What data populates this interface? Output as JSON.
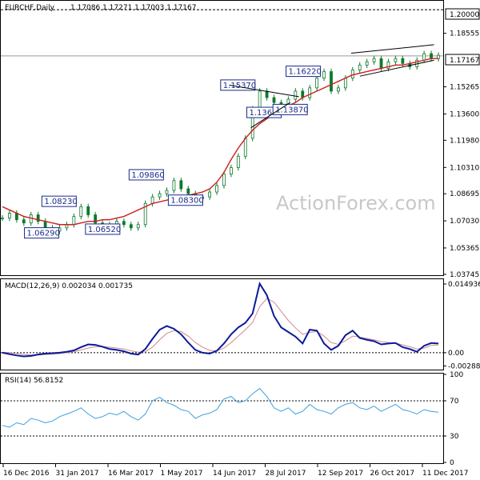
{
  "chart_data": {
    "type": "candlestick",
    "symbol_header": "EURCHF,Daily",
    "ohlc": "1.17086 1.17271 1.17003 1.17167",
    "watermark": "ActionForex.com",
    "x_labels": [
      "16 Dec 2016",
      "31 Jan 2017",
      "16 Mar 2017",
      "1 May 2017",
      "14 Jun 2017",
      "28 Jul 2017",
      "12 Sep 2017",
      "26 Oct 2017",
      "11 Dec 2017"
    ],
    "price_panel": {
      "ylim": [
        1.0374,
        1.205
      ],
      "y_ticks": [
        "1.18555",
        "1.15265",
        "1.13600",
        "1.11980",
        "1.10310",
        "1.08695",
        "1.07030",
        "1.05365",
        "1.03745"
      ],
      "levels": {
        "upper": "1.20000",
        "current": "1.17167"
      },
      "annotations": [
        {
          "label": "1.06290",
          "x": 0.09,
          "y": 1.0629
        },
        {
          "label": "1.08230",
          "x": 0.13,
          "y": 1.0823
        },
        {
          "label": "1.06520",
          "x": 0.23,
          "y": 1.0652
        },
        {
          "label": "1.09860",
          "x": 0.33,
          "y": 1.0986
        },
        {
          "label": "1.08300",
          "x": 0.42,
          "y": 1.083
        },
        {
          "label": "1.15370",
          "x": 0.54,
          "y": 1.1537
        },
        {
          "label": "1.13690",
          "x": 0.6,
          "y": 1.1369
        },
        {
          "label": "1.13870",
          "x": 0.66,
          "y": 1.1387
        },
        {
          "label": "1.16220",
          "x": 0.69,
          "y": 1.1622
        }
      ],
      "close": [
        1.072,
        1.075,
        1.071,
        1.069,
        1.074,
        1.07,
        1.066,
        1.064,
        1.066,
        1.068,
        1.073,
        1.079,
        1.074,
        1.069,
        1.067,
        1.068,
        1.07,
        1.068,
        1.066,
        1.068,
        1.081,
        1.085,
        1.087,
        1.089,
        1.095,
        1.09,
        1.087,
        1.084,
        1.085,
        1.088,
        1.092,
        1.099,
        1.103,
        1.11,
        1.121,
        1.139,
        1.15,
        1.146,
        1.143,
        1.14,
        1.145,
        1.15,
        1.146,
        1.152,
        1.158,
        1.162,
        1.15,
        1.152,
        1.158,
        1.163,
        1.166,
        1.168,
        1.17,
        1.164,
        1.168,
        1.17,
        1.167,
        1.165,
        1.169,
        1.173,
        1.17,
        1.172
      ],
      "ma": [
        1.079,
        1.077,
        1.075,
        1.073,
        1.072,
        1.071,
        1.07,
        1.069,
        1.068,
        1.068,
        1.068,
        1.069,
        1.07,
        1.07,
        1.071,
        1.071,
        1.072,
        1.073,
        1.075,
        1.077,
        1.079,
        1.081,
        1.082,
        1.083,
        1.084,
        1.085,
        1.086,
        1.087,
        1.088,
        1.09,
        1.094,
        1.1,
        1.108,
        1.115,
        1.121,
        1.126,
        1.13,
        1.133,
        1.136,
        1.139,
        1.141,
        1.143,
        1.146,
        1.148,
        1.15,
        1.152,
        1.154,
        1.156,
        1.158,
        1.16,
        1.161,
        1.162,
        1.163,
        1.164,
        1.165,
        1.166,
        1.166,
        1.167,
        1.168,
        1.169,
        1.17,
        1.17
      ],
      "trendlines": [
        {
          "from": [
            0.52,
            1.1537
          ],
          "to": [
            0.68,
            1.1466
          ]
        },
        {
          "from": [
            0.57,
            1.1275
          ],
          "to": [
            0.66,
            1.143
          ]
        },
        {
          "from": [
            0.8,
            1.1733
          ],
          "to": [
            0.99,
            1.1785
          ]
        },
        {
          "from": [
            0.82,
            1.1592
          ],
          "to": [
            0.99,
            1.169
          ]
        }
      ]
    },
    "macd_panel": {
      "label": "MACD(12,26,9) 0.002034 0.001735",
      "ylim": [
        -0.0035,
        0.0158
      ],
      "y_ticks": [
        "0.014936",
        "0.00",
        "-0.002882"
      ],
      "macd": [
        0.0,
        -0.0003,
        -0.0006,
        -0.0008,
        -0.0007,
        -0.0004,
        -0.0002,
        -0.0001,
        0.0,
        0.0002,
        0.0005,
        0.0012,
        0.0018,
        0.0017,
        0.0013,
        0.0008,
        0.0006,
        0.0003,
        -0.0002,
        -0.0004,
        0.0008,
        0.003,
        0.005,
        0.0058,
        0.0052,
        0.004,
        0.0022,
        0.0006,
        0.0,
        -0.0002,
        0.0004,
        0.002,
        0.004,
        0.0055,
        0.0065,
        0.0085,
        0.015,
        0.0125,
        0.008,
        0.0055,
        0.0045,
        0.0035,
        0.002,
        0.005,
        0.0048,
        0.002,
        0.0006,
        0.0015,
        0.0038,
        0.0048,
        0.0032,
        0.0028,
        0.0025,
        0.0018,
        0.002,
        0.0021,
        0.0012,
        0.0008,
        0.0002,
        0.0015,
        0.0021,
        0.002
      ],
      "signal": [
        0.0001,
        0.0,
        -0.0002,
        -0.0004,
        -0.0005,
        -0.0005,
        -0.0004,
        -0.0003,
        -0.0002,
        0.0,
        0.0002,
        0.0006,
        0.001,
        0.0013,
        0.0013,
        0.0012,
        0.001,
        0.0008,
        0.0004,
        0.0001,
        0.0002,
        0.0012,
        0.0028,
        0.0042,
        0.0048,
        0.0046,
        0.0036,
        0.0022,
        0.0012,
        0.0005,
        0.0004,
        0.001,
        0.0022,
        0.0036,
        0.005,
        0.0066,
        0.01,
        0.0118,
        0.011,
        0.009,
        0.007,
        0.0054,
        0.004,
        0.0044,
        0.0046,
        0.0036,
        0.0022,
        0.0018,
        0.0026,
        0.0036,
        0.0034,
        0.0031,
        0.0028,
        0.0024,
        0.0022,
        0.0021,
        0.0017,
        0.0013,
        0.0008,
        0.001,
        0.0016,
        0.0017
      ]
    },
    "rsi_panel": {
      "label": "RSI(14) 56.8152",
      "ylim": [
        0,
        100
      ],
      "y_ticks": [
        "100",
        "70",
        "30",
        "0"
      ],
      "rsi": [
        42,
        40,
        45,
        43,
        50,
        48,
        45,
        47,
        52,
        55,
        58,
        62,
        55,
        50,
        52,
        56,
        54,
        58,
        52,
        48,
        55,
        70,
        74,
        68,
        65,
        60,
        58,
        50,
        54,
        56,
        60,
        72,
        75,
        68,
        70,
        78,
        84,
        75,
        62,
        58,
        62,
        55,
        58,
        66,
        60,
        58,
        55,
        62,
        66,
        68,
        62,
        60,
        64,
        58,
        62,
        66,
        60,
        58,
        55,
        60,
        58,
        57
      ]
    }
  }
}
